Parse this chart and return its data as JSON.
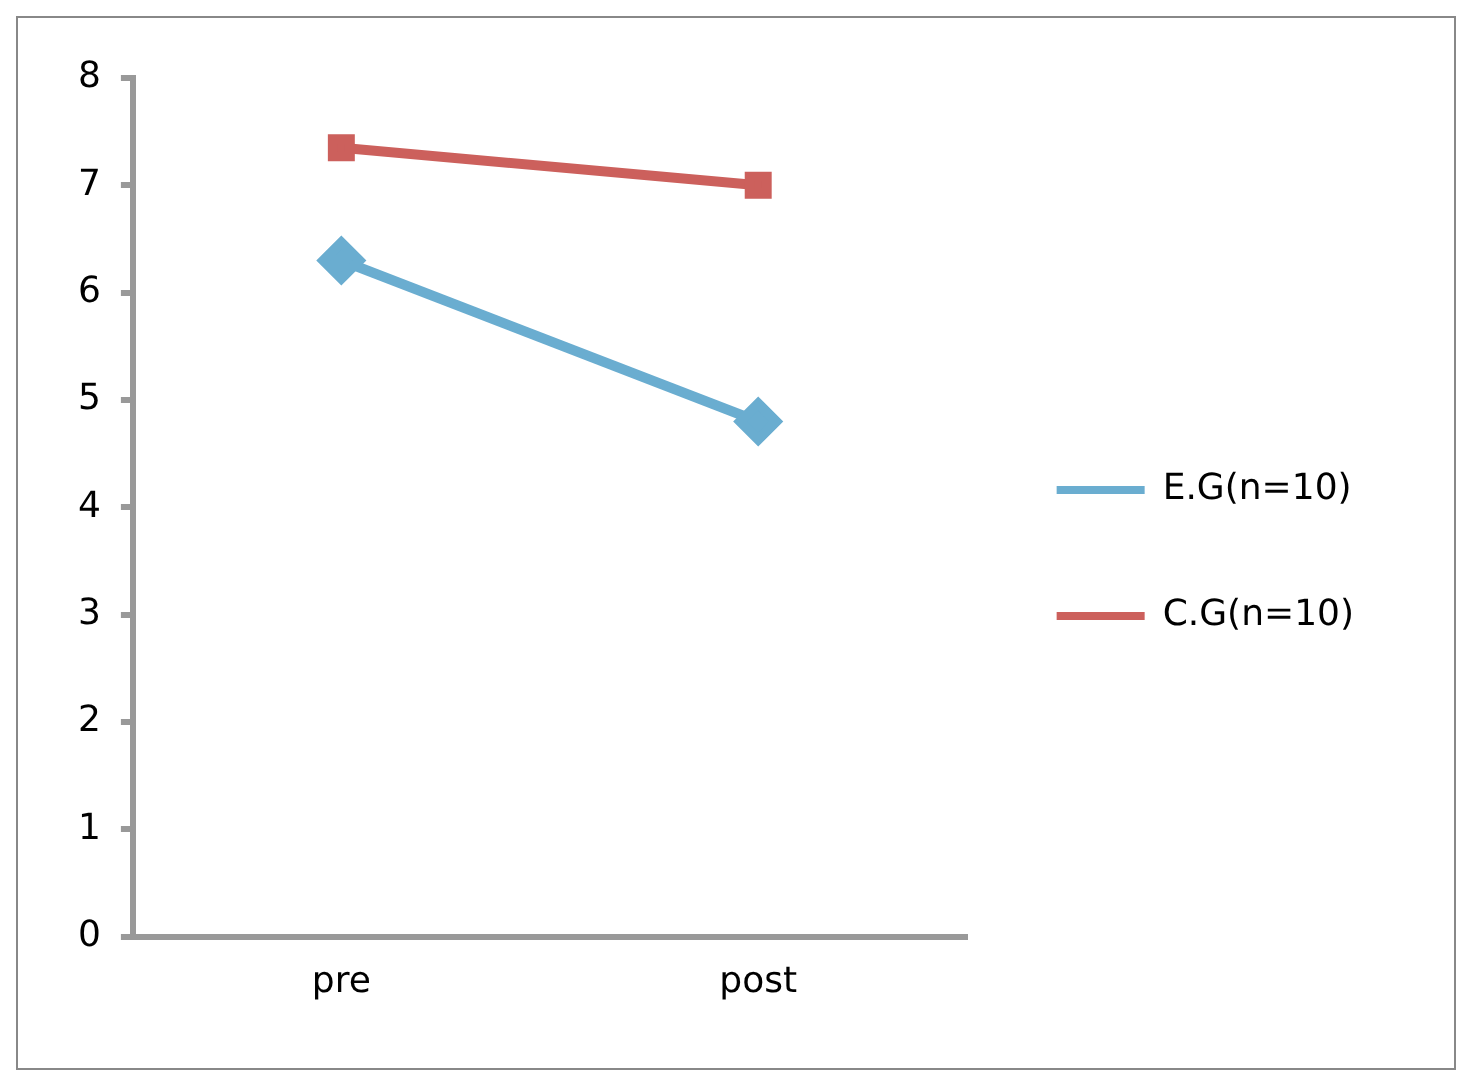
{
  "chart_data": {
    "type": "line",
    "categories": [
      "pre",
      "post"
    ],
    "series": [
      {
        "name": "E.G(n=10)",
        "color": "#6aadd0",
        "values": [
          6.3,
          4.8
        ],
        "marker": "diamond"
      },
      {
        "name": "C.G(n=10)",
        "color": "#cc605c",
        "values": [
          7.35,
          7.0
        ],
        "marker": "square"
      }
    ],
    "ylim": [
      0,
      8
    ],
    "yticks": [
      0,
      1,
      2,
      3,
      4,
      5,
      6,
      7,
      8
    ],
    "grid": false,
    "legend": "right",
    "line_style": "solid"
  }
}
